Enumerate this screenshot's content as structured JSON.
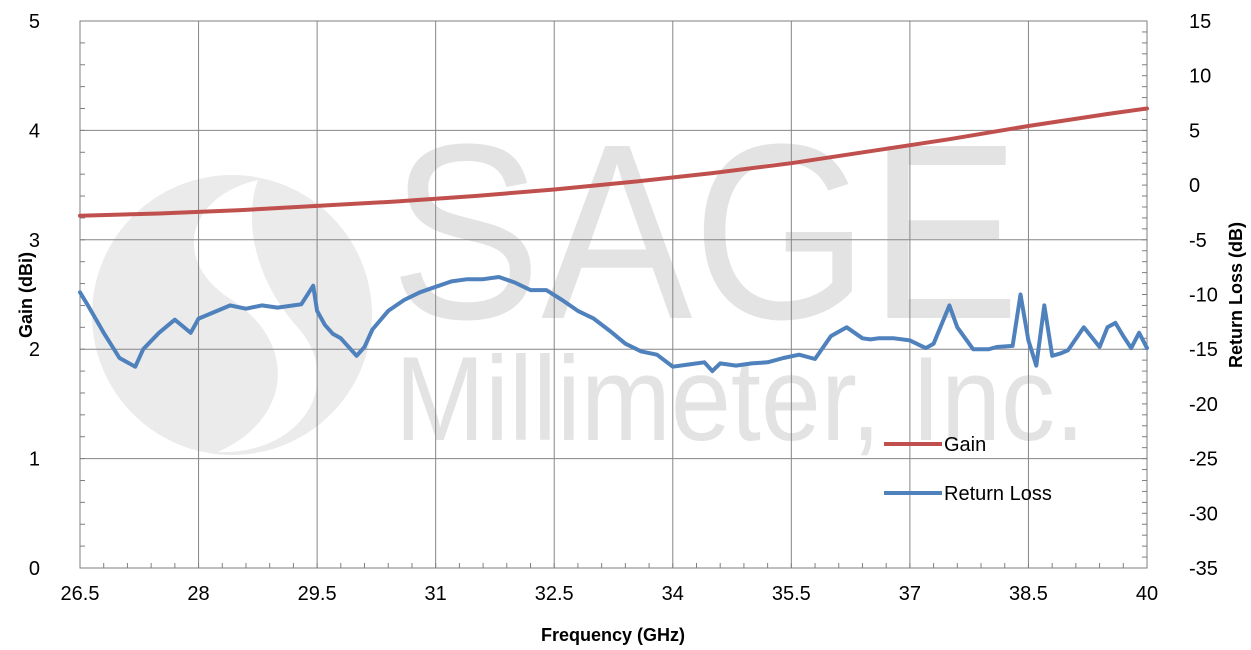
{
  "watermark": {
    "line1": "SAGE",
    "line2": "Millimeter, Inc."
  },
  "chart_data": {
    "type": "line",
    "xlabel": "Frequency (GHz)",
    "ylabel_left": "Gain (dBi)",
    "ylabel_right": "Return Loss (dB)",
    "xlim": [
      26.5,
      40
    ],
    "ylim_left": [
      0,
      5
    ],
    "ylim_right": [
      -35,
      15
    ],
    "x_ticks": [
      "26.5",
      "28",
      "29.5",
      "31",
      "32.5",
      "34",
      "35.5",
      "37",
      "38.5",
      "40"
    ],
    "y_left_ticks": [
      "0",
      "1",
      "2",
      "3",
      "4",
      "5"
    ],
    "y_right_ticks": [
      "-35",
      "-30",
      "-25",
      "-20",
      "-15",
      "-10",
      "-5",
      "0",
      "5",
      "10",
      "15"
    ],
    "grid": true,
    "legend_position": "lower-right",
    "series": [
      {
        "name": "Gain",
        "axis": "left",
        "color": "#c0504d",
        "x": [
          26.5,
          27.5,
          28.5,
          29.5,
          30.5,
          31.5,
          32.5,
          33.5,
          34.5,
          35.5,
          36.5,
          37.5,
          38.5,
          39.5,
          40
        ],
        "y": [
          3.22,
          3.24,
          3.27,
          3.31,
          3.35,
          3.4,
          3.46,
          3.53,
          3.61,
          3.7,
          3.81,
          3.92,
          4.04,
          4.15,
          4.2
        ]
      },
      {
        "name": "Return Loss",
        "axis": "right",
        "color": "#4f81bd",
        "x": [
          26.5,
          26.6,
          26.8,
          27.0,
          27.2,
          27.3,
          27.5,
          27.7,
          27.85,
          27.9,
          28.0,
          28.2,
          28.4,
          28.6,
          28.8,
          29.0,
          29.2,
          29.3,
          29.45,
          29.5,
          29.6,
          29.7,
          29.8,
          30.0,
          30.1,
          30.2,
          30.4,
          30.6,
          30.8,
          31.0,
          31.2,
          31.4,
          31.6,
          31.8,
          32.0,
          32.2,
          32.4,
          32.6,
          32.8,
          33.0,
          33.2,
          33.4,
          33.6,
          33.8,
          34.0,
          34.2,
          34.4,
          34.5,
          34.6,
          34.8,
          35.0,
          35.2,
          35.4,
          35.6,
          35.8,
          36.0,
          36.2,
          36.4,
          36.5,
          36.6,
          36.8,
          37.0,
          37.2,
          37.3,
          37.5,
          37.6,
          37.8,
          38.0,
          38.1,
          38.3,
          38.4,
          38.5,
          38.6,
          38.7,
          38.8,
          38.9,
          39.0,
          39.2,
          39.4,
          39.5,
          39.6,
          39.7,
          39.8,
          39.9,
          40.0
        ],
        "y": [
          -9.8,
          -11.0,
          -13.5,
          -15.8,
          -16.6,
          -15.0,
          -13.5,
          -12.3,
          -13.2,
          -13.5,
          -12.2,
          -11.6,
          -11.0,
          -11.3,
          -11.0,
          -11.2,
          -11.0,
          -10.9,
          -9.2,
          -11.5,
          -12.8,
          -13.6,
          -14.0,
          -15.6,
          -14.8,
          -13.2,
          -11.5,
          -10.5,
          -9.8,
          -9.3,
          -8.8,
          -8.6,
          -8.6,
          -8.4,
          -8.9,
          -9.6,
          -9.6,
          -10.5,
          -11.5,
          -12.2,
          -13.3,
          -14.5,
          -15.2,
          -15.5,
          -16.6,
          -16.4,
          -16.2,
          -17.0,
          -16.3,
          -16.5,
          -16.3,
          -16.2,
          -15.8,
          -15.5,
          -15.9,
          -13.8,
          -13.0,
          -14.0,
          -14.1,
          -14.0,
          -14.0,
          -14.2,
          -14.9,
          -14.5,
          -11.0,
          -13.0,
          -15.0,
          -15.0,
          -14.8,
          -14.7,
          -10.0,
          -14.2,
          -16.5,
          -11.0,
          -15.6,
          -15.4,
          -15.1,
          -13.0,
          -14.8,
          -13.0,
          -12.6,
          -13.8,
          -14.9,
          -13.5,
          -14.9
        ]
      }
    ]
  }
}
